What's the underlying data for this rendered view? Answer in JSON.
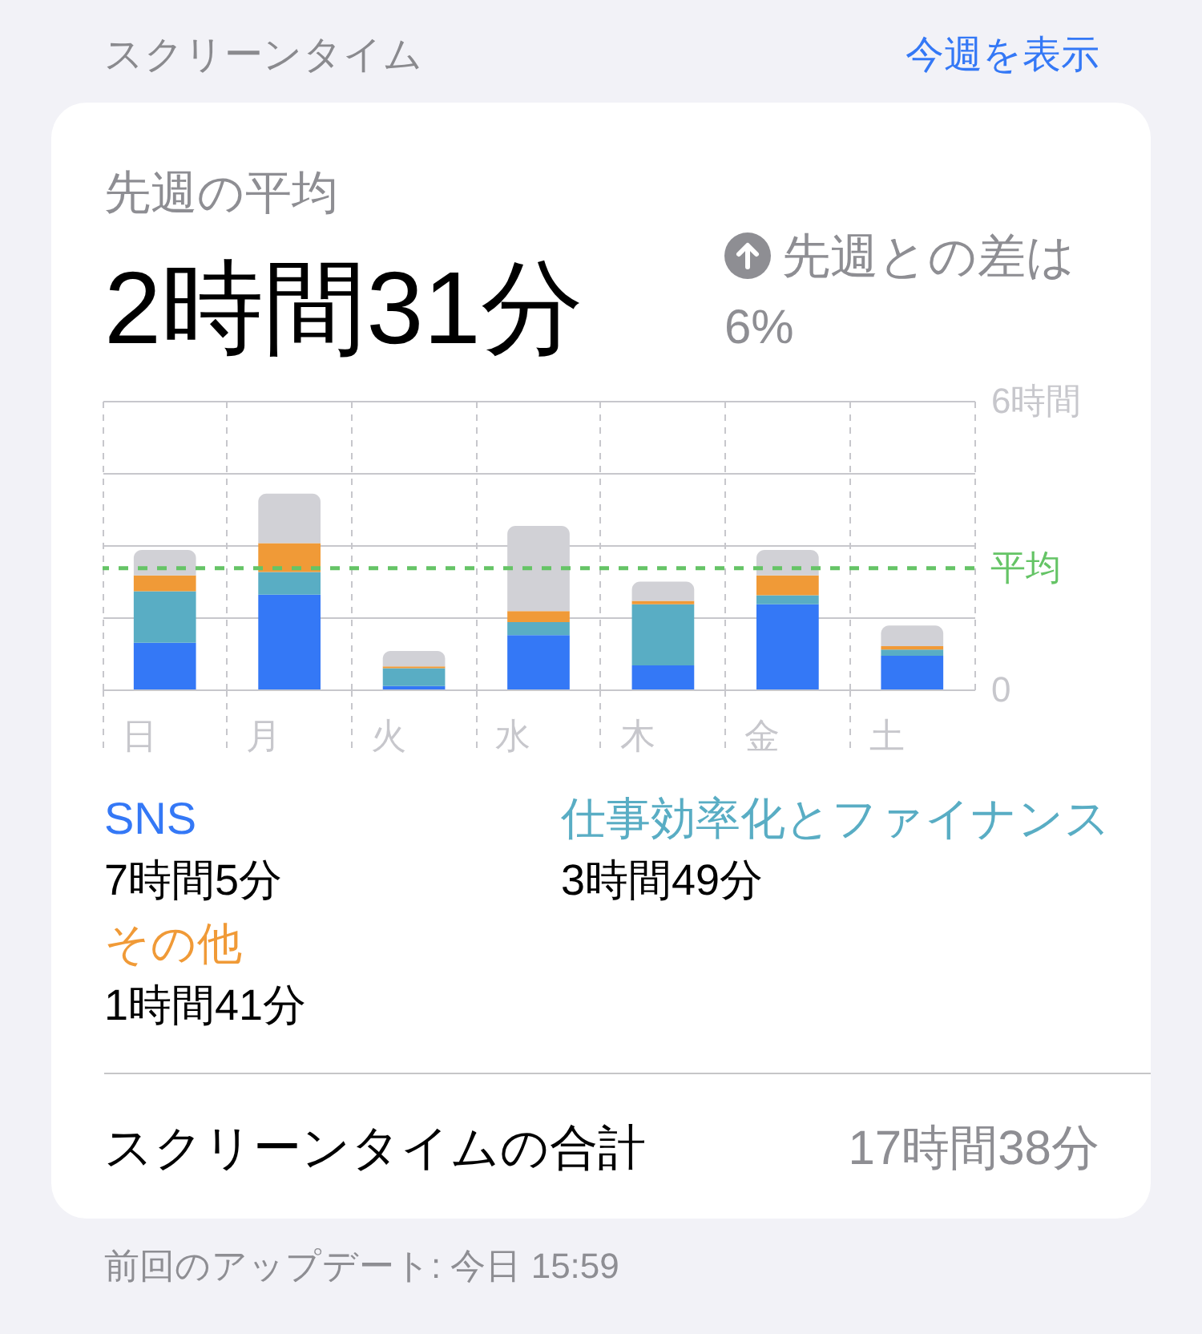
{
  "chart_data": {
    "type": "bar",
    "title": "スクリーンタイム",
    "subtitle": "先週の平均",
    "categories": [
      "日",
      "月",
      "火",
      "水",
      "木",
      "金",
      "土"
    ],
    "stacked": true,
    "series": [
      {
        "name": "SNS",
        "color": "#3478f6",
        "values": [
          0.97,
          1.97,
          0.07,
          1.13,
          0.5,
          1.77,
          0.7
        ]
      },
      {
        "name": "仕事効率化とファイナンス",
        "color": "#59adc4",
        "values": [
          1.07,
          0.47,
          0.37,
          0.27,
          1.27,
          0.19,
          0.13
        ]
      },
      {
        "name": "その他",
        "color": "#f09a37",
        "values": [
          0.33,
          0.6,
          0.04,
          0.23,
          0.07,
          0.41,
          0.07
        ]
      },
      {
        "color": "#d1d1d6",
        "values": [
          0.53,
          1.03,
          0.32,
          1.77,
          0.4,
          0.53,
          0.43
        ]
      }
    ],
    "ylim": [
      0,
      6
    ],
    "yticks": [
      0,
      {
        "value": 1.5,
        "label": null
      },
      {
        "value": 3,
        "label": null
      },
      {
        "value": 4.5,
        "label": null
      },
      {
        "value": 6,
        "label": "6時間"
      }
    ],
    "grid": true,
    "legend": "bottom",
    "ref_lines": [
      {
        "axis": "y",
        "value": 2.52,
        "label": "平均",
        "color": "#65c466",
        "line_style": "dashed"
      }
    ],
    "annotations": [
      "今週を表示",
      "2時間31分",
      "先週との差は 6%",
      "7時間5分",
      "3時間49分",
      "1時間41分",
      "スクリーンタイムの合計",
      "17時間38分",
      "前回のアップデート: 今日 15:59"
    ]
  }
}
